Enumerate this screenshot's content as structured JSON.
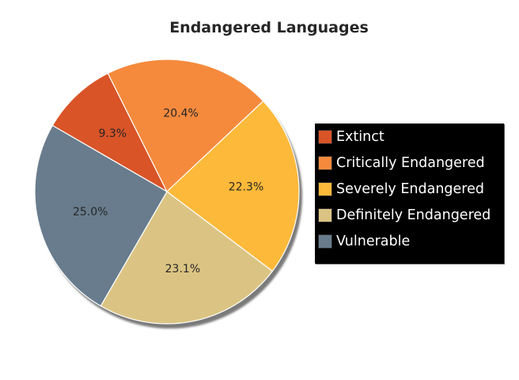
{
  "chart_data": {
    "type": "pie",
    "title": "Endangered Languages",
    "categories": [
      "Extinct",
      "Critically Endangered",
      "Severely Endangered",
      "Definitely Endangered",
      "Vulnerable"
    ],
    "values": [
      9.3,
      20.4,
      22.3,
      23.1,
      25.0
    ],
    "labels": [
      "9.3%",
      "20.4%",
      "22.3%",
      "23.1%",
      "25.0%"
    ],
    "colors": [
      "#d95427",
      "#f58a3d",
      "#fdb939",
      "#dbc483",
      "#687c8d"
    ],
    "start_angle_deg": 150,
    "direction": "clockwise",
    "shadow": true,
    "legend": {
      "placement": "right",
      "background": "#000000",
      "text_color": "#ffffff"
    }
  }
}
